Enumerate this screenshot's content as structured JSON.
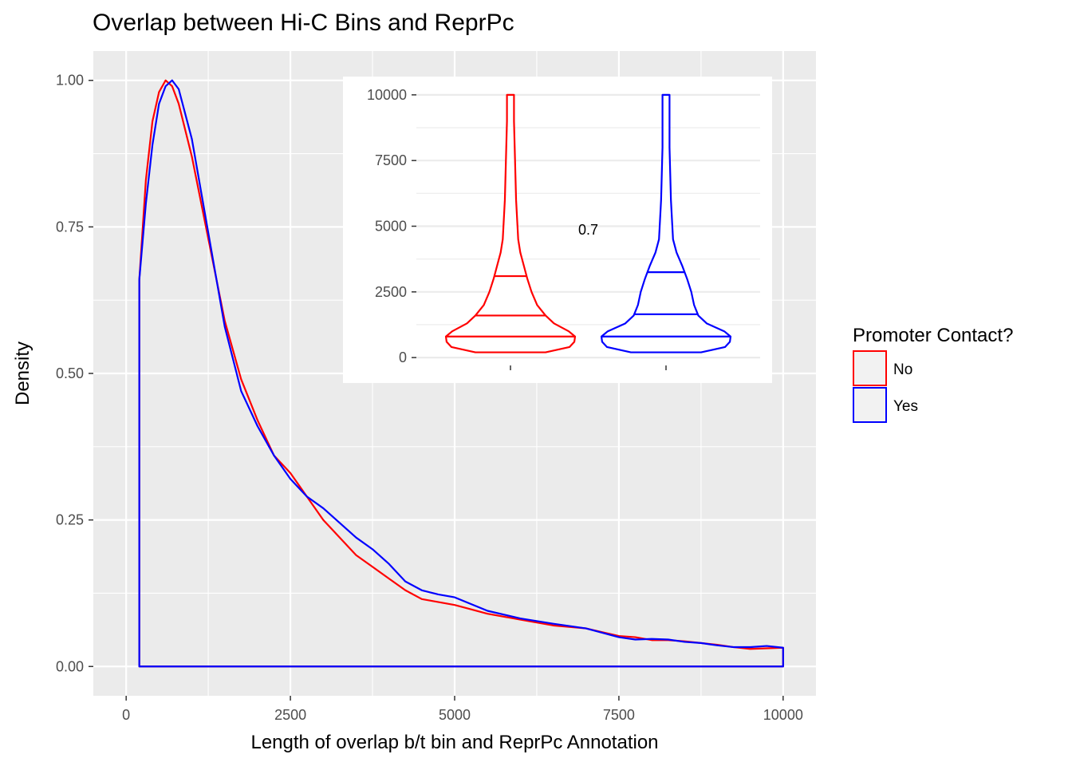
{
  "chart_data": {
    "type": "area",
    "title": "Overlap between Hi-C Bins and ReprPc",
    "xlabel": "Length of overlap b/t bin and ReprPc Annotation",
    "ylabel": "Density",
    "xlim": [
      -500,
      10500
    ],
    "ylim": [
      -0.05,
      1.05
    ],
    "x_ticks": [
      0,
      2500,
      5000,
      7500,
      10000
    ],
    "x_tick_labels": [
      "0",
      "2500",
      "5000",
      "7500",
      "10000"
    ],
    "y_ticks": [
      0,
      0.25,
      0.5,
      0.75,
      1.0
    ],
    "y_tick_labels": [
      "0.00",
      "0.25",
      "0.50",
      "0.75",
      "1.00"
    ],
    "grid": true,
    "legend": {
      "title": "Promoter Contact?",
      "position": "right",
      "entries": [
        {
          "label": "No",
          "color": "#ff0000"
        },
        {
          "label": "Yes",
          "color": "#0000ff"
        }
      ]
    },
    "series": [
      {
        "name": "No",
        "color": "#ff0000",
        "x": [
          200,
          300,
          400,
          500,
          600,
          700,
          800,
          1000,
          1250,
          1500,
          1750,
          2000,
          2250,
          2500,
          2750,
          3000,
          3500,
          3750,
          4000,
          4250,
          4500,
          5000,
          5500,
          6000,
          6500,
          7000,
          7500,
          7750,
          8000,
          8250,
          8500,
          8750,
          9000,
          9250,
          9500,
          9750,
          10000
        ],
        "y": [
          0.66,
          0.83,
          0.93,
          0.98,
          1.0,
          0.99,
          0.96,
          0.87,
          0.73,
          0.59,
          0.49,
          0.42,
          0.36,
          0.33,
          0.29,
          0.25,
          0.19,
          0.17,
          0.15,
          0.13,
          0.115,
          0.105,
          0.09,
          0.08,
          0.07,
          0.065,
          0.052,
          0.05,
          0.045,
          0.045,
          0.043,
          0.04,
          0.037,
          0.033,
          0.03,
          0.031,
          0.032
        ]
      },
      {
        "name": "Yes",
        "color": "#0000ff",
        "x": [
          200,
          300,
          400,
          500,
          600,
          700,
          800,
          1000,
          1250,
          1500,
          1750,
          2000,
          2250,
          2500,
          2750,
          3000,
          3500,
          3750,
          4000,
          4250,
          4500,
          4750,
          5000,
          5500,
          6000,
          6500,
          7000,
          7500,
          7750,
          8000,
          8250,
          8500,
          8750,
          9000,
          9250,
          9500,
          9750,
          10000
        ],
        "y": [
          0.66,
          0.79,
          0.89,
          0.96,
          0.99,
          1.0,
          0.985,
          0.9,
          0.74,
          0.58,
          0.47,
          0.41,
          0.36,
          0.32,
          0.29,
          0.27,
          0.22,
          0.2,
          0.175,
          0.145,
          0.13,
          0.123,
          0.118,
          0.095,
          0.082,
          0.073,
          0.065,
          0.05,
          0.046,
          0.047,
          0.046,
          0.042,
          0.04,
          0.036,
          0.033,
          0.033,
          0.035,
          0.032
        ]
      }
    ],
    "inset": {
      "type": "violin",
      "ylim": [
        -300,
        10300
      ],
      "y_ticks": [
        0,
        2500,
        5000,
        7500,
        10000
      ],
      "y_tick_labels": [
        "0",
        "2500",
        "5000",
        "7500",
        "10000"
      ],
      "annotation": "0.7",
      "annotation_y": 4900,
      "violins": [
        {
          "name": "No",
          "color": "#ff0000",
          "quantiles": [
            800,
            1600,
            3100
          ],
          "profile_y": [
            200,
            400,
            600,
            800,
            1000,
            1300,
            1600,
            2000,
            2500,
            3000,
            3500,
            4000,
            4500,
            5000,
            6000,
            7000,
            8000,
            9000,
            9900,
            10000
          ],
          "profile_w": [
            0.5,
            0.84,
            0.91,
            0.92,
            0.83,
            0.62,
            0.5,
            0.38,
            0.3,
            0.24,
            0.19,
            0.14,
            0.11,
            0.1,
            0.08,
            0.07,
            0.06,
            0.05,
            0.05,
            0.05
          ]
        },
        {
          "name": "Yes",
          "color": "#0000ff",
          "quantiles": [
            800,
            1650,
            3250
          ],
          "profile_y": [
            200,
            400,
            600,
            800,
            1000,
            1300,
            1600,
            2000,
            2500,
            3000,
            3500,
            4000,
            4500,
            5000,
            6000,
            7000,
            8000,
            9000,
            9900,
            10000
          ],
          "profile_w": [
            0.5,
            0.84,
            0.91,
            0.92,
            0.83,
            0.58,
            0.46,
            0.4,
            0.36,
            0.3,
            0.23,
            0.15,
            0.1,
            0.09,
            0.07,
            0.06,
            0.05,
            0.05,
            0.05,
            0.05
          ]
        }
      ]
    }
  }
}
